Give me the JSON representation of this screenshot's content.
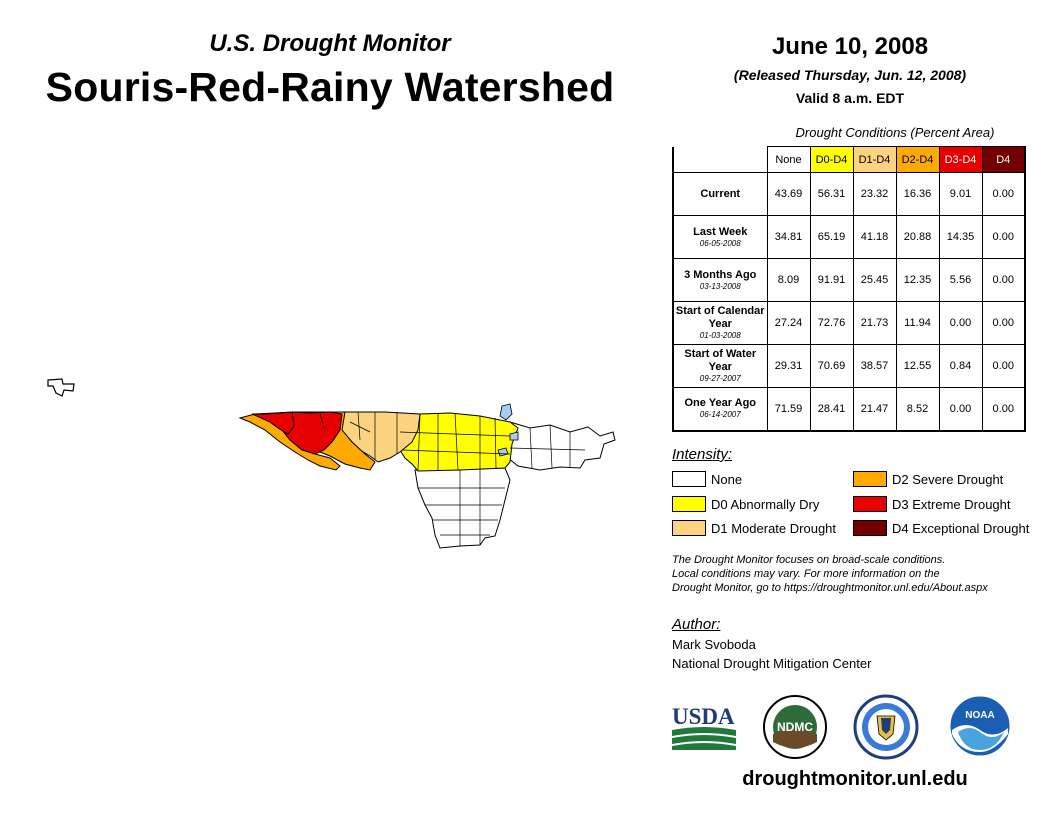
{
  "header": {
    "subtitle": "U.S. Drought Monitor",
    "title": "Souris-Red-Rainy Watershed",
    "date": "June 10, 2008",
    "released": "(Released Thursday, Jun. 12, 2008)",
    "valid": "Valid 8 a.m. EDT"
  },
  "table": {
    "caption": "Drought Conditions (Percent Area)",
    "columns": [
      "None",
      "D0-D4",
      "D1-D4",
      "D2-D4",
      "D3-D4",
      "D4"
    ],
    "rows": [
      {
        "label": "Current",
        "date": "",
        "values": [
          "43.69",
          "56.31",
          "23.32",
          "16.36",
          "9.01",
          "0.00"
        ]
      },
      {
        "label": "Last Week",
        "date": "06-05-2008",
        "values": [
          "34.81",
          "65.19",
          "41.18",
          "20.88",
          "14.35",
          "0.00"
        ]
      },
      {
        "label": "3 Months Ago",
        "date": "03-13-2008",
        "values": [
          "8.09",
          "91.91",
          "25.45",
          "12.35",
          "5.56",
          "0.00"
        ]
      },
      {
        "label": "Start of Calendar Year",
        "date": "01-03-2008",
        "values": [
          "27.24",
          "72.76",
          "21.73",
          "11.94",
          "0.00",
          "0.00"
        ]
      },
      {
        "label": "Start of Water Year",
        "date": "09-27-2007",
        "values": [
          "29.31",
          "70.69",
          "38.57",
          "12.55",
          "0.84",
          "0.00"
        ]
      },
      {
        "label": "One Year Ago",
        "date": "06-14-2007",
        "values": [
          "71.59",
          "28.41",
          "21.47",
          "8.52",
          "0.00",
          "0.00"
        ]
      }
    ]
  },
  "legend": {
    "title": "Intensity:",
    "items": [
      {
        "label": "None",
        "color": "#ffffff"
      },
      {
        "label": "D0 Abnormally Dry",
        "color": "#ffff00"
      },
      {
        "label": "D1 Moderate Drought",
        "color": "#fcd37f"
      },
      {
        "label": "D2 Severe Drought",
        "color": "#ffaa00"
      },
      {
        "label": "D3 Extreme Drought",
        "color": "#e60000"
      },
      {
        "label": "D4 Exceptional Drought",
        "color": "#730000"
      }
    ]
  },
  "note": {
    "line1": "The Drought Monitor focuses on broad-scale conditions.",
    "line2": "Local conditions may vary. For more information on the",
    "line3": "Drought Monitor, go to https://droughtmonitor.unl.edu/About.aspx"
  },
  "author": {
    "label": "Author:",
    "name": "Mark Svoboda",
    "org": "National Drought Mitigation Center"
  },
  "logos": {
    "usda": "USDA",
    "ndmc": "NDMC",
    "noaa": "NOAA"
  },
  "website": "droughtmonitor.unl.edu",
  "colors": {
    "d0": "#ffff00",
    "d1": "#fcd37f",
    "d2": "#ffaa00",
    "d3": "#e60000",
    "d4": "#730000",
    "water": "#a6cdf2"
  }
}
